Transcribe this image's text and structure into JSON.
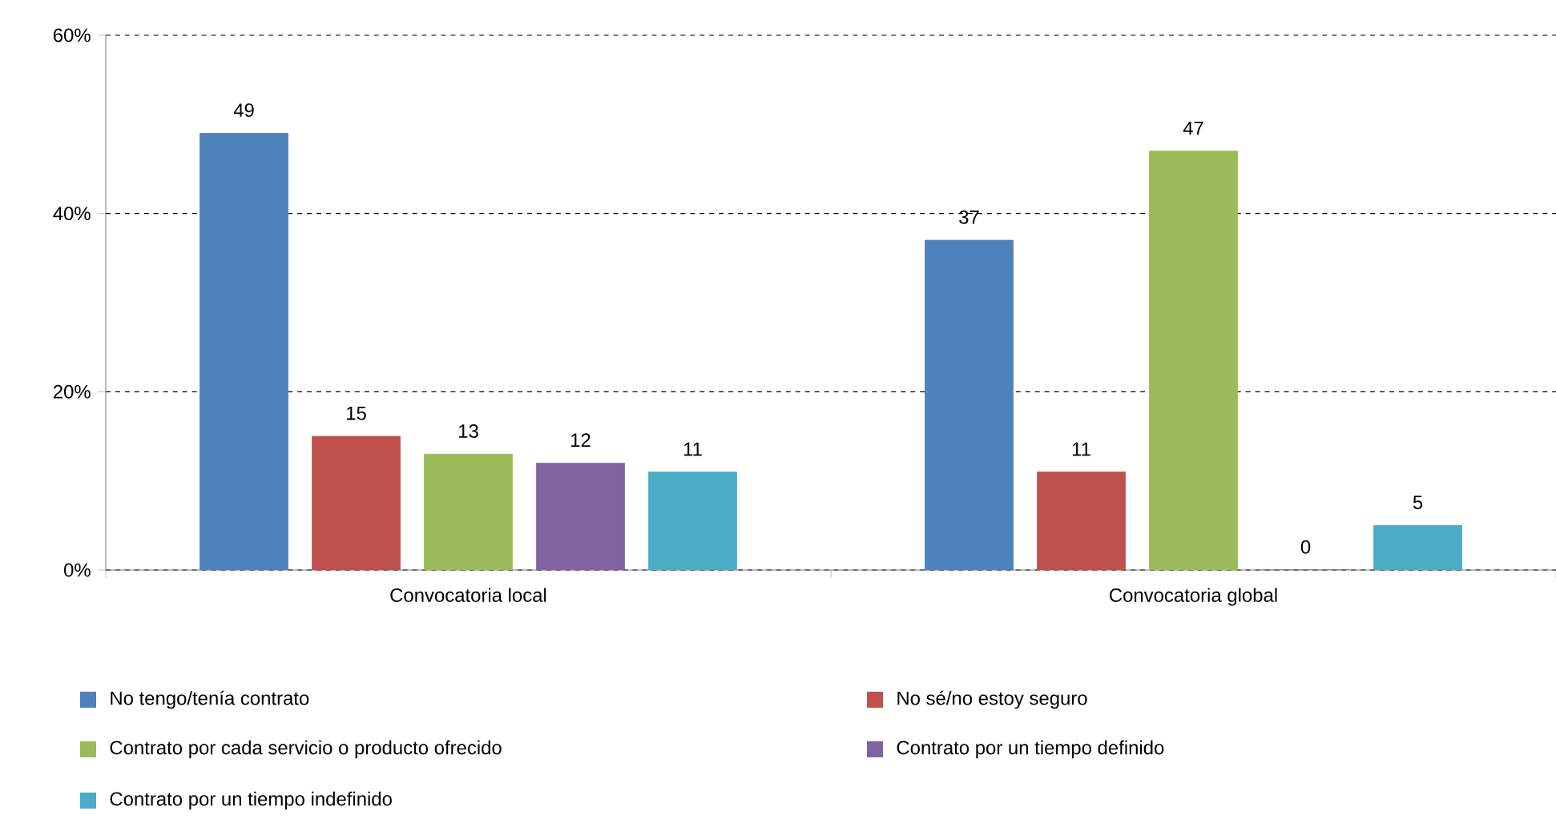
{
  "chart_data": {
    "type": "bar",
    "categories": [
      "Convocatoria local",
      "Convocatoria global"
    ],
    "series": [
      {
        "name": "No tengo/tenía contrato",
        "color": "#4f81bd",
        "values": [
          49,
          37
        ]
      },
      {
        "name": "No sé/no estoy seguro",
        "color": "#c0504d",
        "values": [
          15,
          11
        ]
      },
      {
        "name": "Contrato por cada servicio o producto ofrecido",
        "color": "#9bbb59",
        "values": [
          13,
          47
        ]
      },
      {
        "name": "Contrato por un tiempo definido",
        "color": "#8064a2",
        "values": [
          12,
          0
        ]
      },
      {
        "name": "Contrato por un tiempo indefinido",
        "color": "#4bacc6",
        "values": [
          11,
          5
        ]
      }
    ],
    "ylim": [
      0,
      60
    ],
    "yticks": [
      {
        "value": 0,
        "label": "0%"
      },
      {
        "value": 20,
        "label": "20%"
      },
      {
        "value": 40,
        "label": "40%"
      },
      {
        "value": 60,
        "label": "60%"
      }
    ],
    "grid": "y",
    "legend": "bottom",
    "data_labels": true
  }
}
